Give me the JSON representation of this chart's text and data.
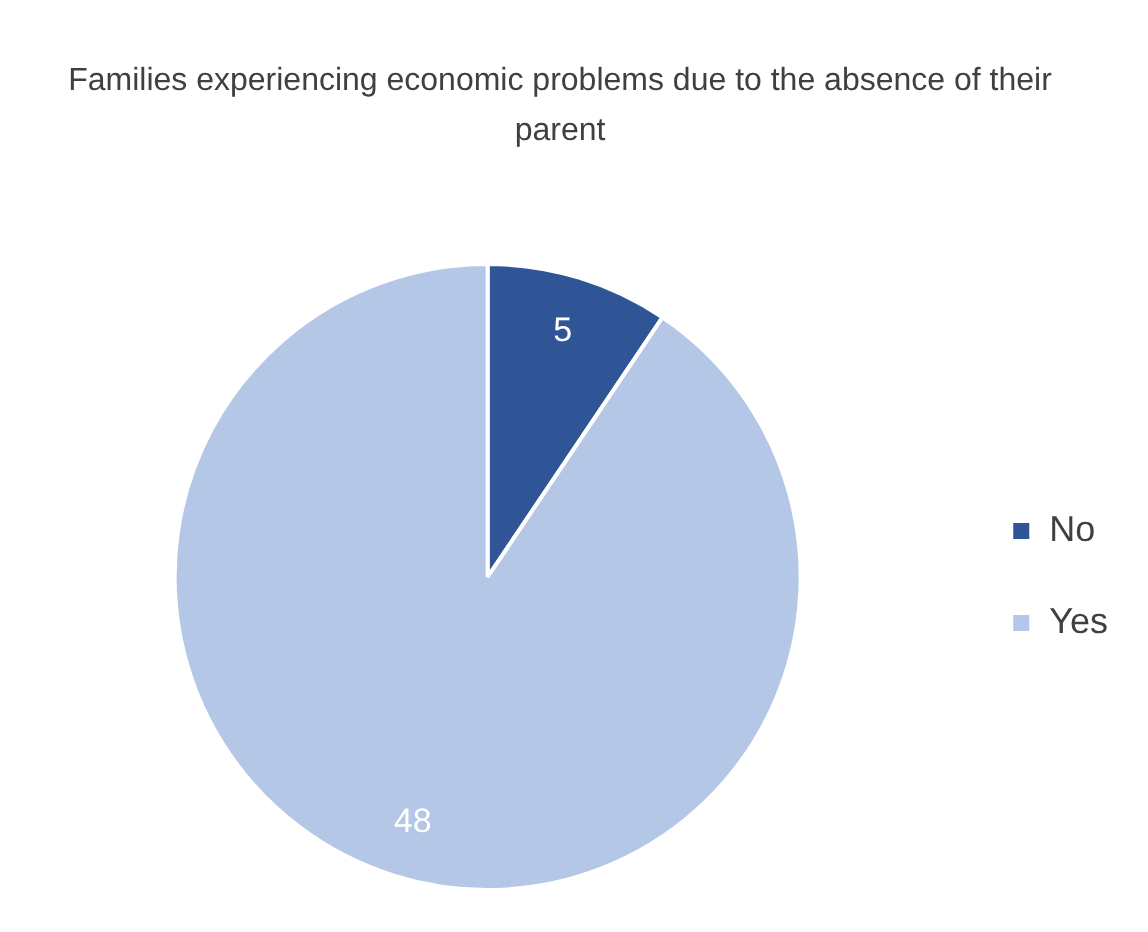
{
  "chart_data": {
    "type": "pie",
    "title": "Families experiencing economic problems due to the absence of their parent",
    "categories": [
      "No",
      "Yes"
    ],
    "values": [
      5,
      48
    ],
    "colors": [
      "#2f5597",
      "#b4c7e7"
    ],
    "data_labels": true,
    "legend": "right"
  }
}
